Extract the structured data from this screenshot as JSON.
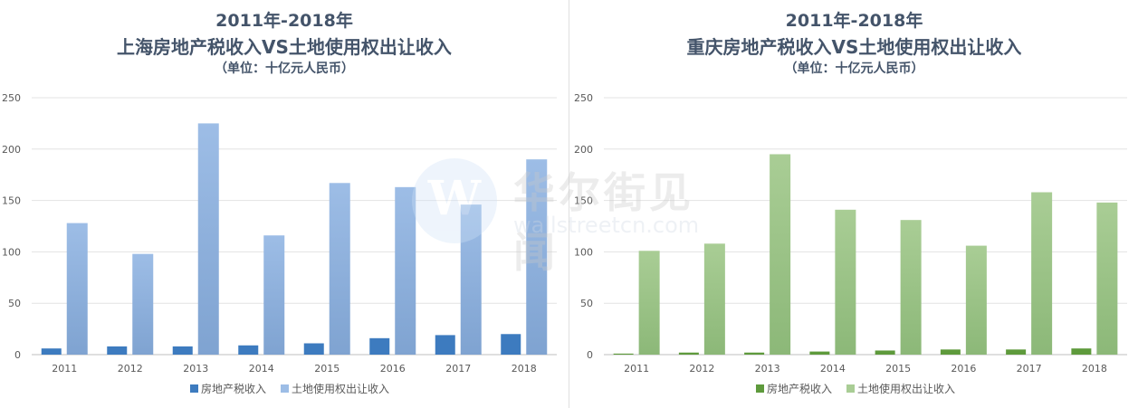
{
  "charts": [
    {
      "title_line1": "2011年-2018年",
      "title_line2": "上海房地产税收入VS土地使用权出让收入",
      "unit": "（单位：十亿元人民币）",
      "legend": [
        "房地产税收入",
        "土地使用权出让收入"
      ],
      "colors": {
        "series1": "#3d7bbf",
        "series2": "#9dbde6",
        "series2_dark": "#7fa3d1"
      }
    },
    {
      "title_line1": "2011年-2018年",
      "title_line2": "重庆房地产税收入VS土地使用权出让收入",
      "unit": "（单位：十亿元人民币）",
      "legend": [
        "房地产税收入",
        "土地使用权出让收入"
      ],
      "colors": {
        "series1": "#5e9a3c",
        "series2": "#a9cd95",
        "series2_dark": "#8cb878"
      }
    }
  ],
  "watermark": {
    "cn": "华尔街见闻",
    "en": "wallstreetcn.com",
    "logo": "W"
  },
  "chart_data": [
    {
      "type": "bar",
      "title": "2011年-2018年 上海房地产税收入VS土地使用权出让收入",
      "categories": [
        "2011",
        "2012",
        "2013",
        "2014",
        "2015",
        "2016",
        "2017",
        "2018"
      ],
      "series": [
        {
          "name": "房地产税收入",
          "values": [
            6,
            8,
            8,
            9,
            11,
            16,
            19,
            20
          ]
        },
        {
          "name": "土地使用权出让收入",
          "values": [
            128,
            98,
            225,
            116,
            167,
            163,
            146,
            190
          ]
        }
      ],
      "ylim": [
        0,
        250
      ],
      "yticks": [
        0,
        50,
        100,
        150,
        200,
        250
      ],
      "grid": true,
      "legend_position": "bottom"
    },
    {
      "type": "bar",
      "title": "2011年-2018年 重庆房地产税收入VS土地使用权出让收入",
      "categories": [
        "2011",
        "2012",
        "2013",
        "2014",
        "2015",
        "2016",
        "2017",
        "2018"
      ],
      "series": [
        {
          "name": "房地产税收入",
          "values": [
            1,
            2,
            2,
            3,
            4,
            5,
            5,
            6
          ]
        },
        {
          "name": "土地使用权出让收入",
          "values": [
            101,
            108,
            195,
            141,
            131,
            106,
            158,
            148
          ]
        }
      ],
      "ylim": [
        0,
        250
      ],
      "yticks": [
        0,
        50,
        100,
        150,
        200,
        250
      ],
      "grid": true,
      "legend_position": "bottom"
    }
  ]
}
